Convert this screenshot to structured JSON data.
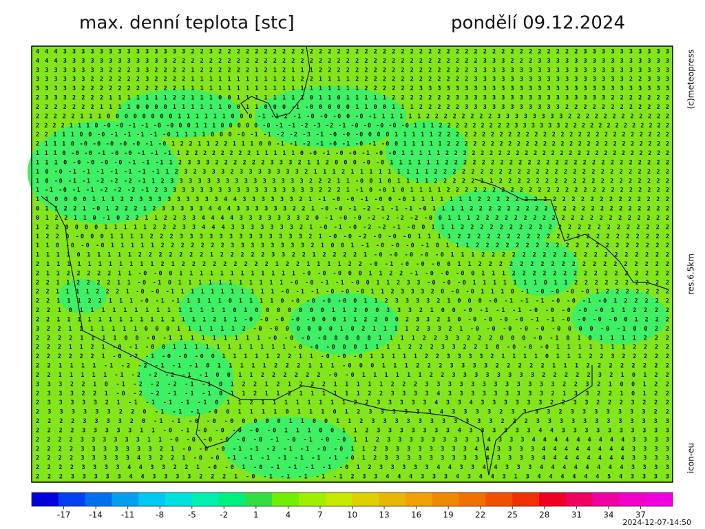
{
  "header": {
    "title": "max. denní teplota [stc]",
    "date": "pondělí 09.12.2024"
  },
  "credits": {
    "copyright": "(c)meteopress",
    "resolution": "res.6.5km",
    "model": "icon-eu"
  },
  "grid": {
    "rows": [
      "4 4 4 3 3 3 3 3 3 3 3 3 3 3 3 3 3 2 2 3 2 2 2 2 2 2 2 2 2 2 2 2 2 2 2 2 2 2 2 2 2 2 2 2 2 2 2 2 2 2 2 2 2 2 2 2 2 2 2 2 3 3 3 3 3 3 3 3 3 3",
      "4 4 4 3 3 3 3 3 3 3 3 3 3 3 3 2 2 2 2 2 2 2 2 2 2 2 2 2 2 2 2 2 2 2 2 2 2 2 2 2 2 2 2 2 2 2 2 2 2 3 3 3 2 2 2 3 3 3 3 3 3 3 3 3 3 3 3 3 3 3",
      "3 3 3 3 3 3 3 3 2 2 2 3 3 2 2 2 2 1 2 2 2 2 2 2 1 2 1 2 1 1 1 2 2 2 2 2 2 2 2 2 2 2 2 2 2 2 2 2 3 3 3 3 3 3 3 3 3 3 3 3 3 3 3 3 3 3 3 3 3 3",
      "3 3 3 3 3 3 2 2 2 2 2 2 3 2 2 2 2 1 1 1 1 1 1 1 1 1 1 2 1 2 2 1 1 1 1 2 2 2 2 2 2 2 2 2 2 2 2 2 3 3 3 3 3 3 3 3 3 3 3 3 3 3 3 3 3 2 2 3 3 3",
      "3 3 3 3 3 2 2 2 2 2 2 2 2 2 2 2 1 1 1 1 1 1 1 1 1 1 1 1 1 1 1 1 1 1 1 1 2 2 2 2 2 2 3 3 3 3 3 3 3 3 3 3 3 3 3 3 3 3 3 3 3 3 3 3 3 3 3 3 3 3",
      "2 3 3 3 2 2 2 2 1 1 1 1 1 1 1 2 2 1 1 1 0 0 1 1 1 1 1 1 1 1 0 1 1 0 1 1 1 1 1 2 2 2 2 2 2 2 3 3 3 3 3 3 3 3 3 3 3 3 3 3 3 3 3 2 2 2 2 2 2 2",
      "2 2 2 2 2 2 2 1 1 1 1 0 0 0 0 1 1 1 1 1 1 0 0 1 1 0 0 0 -1 -0 0 0 0 0 1 1 0 0 1 1 1 2 2 2 2 2 3 3 3 3 3 3 3 3 3 3 3 2 2 2 2 2 2 2 2 2 2 2 2",
      "2 2 2 2 2 1 1 1 0 0 0 0 0 0 0 0 1 1 1 1 1 1 0 0 0 -1 -1 2 -1 -0 -0 -0 0 -0 -1 1 1 1 1 1 2 2 2 2 2 2 2 2 3 3 3 3 3 3 3 3 2 2 2 2 2 2 2 2 2 2 2 2",
      "2 2 2 2 1 1 1 0 -0 -0 -1 -1 -0 -0 0 0 1 1 1 0 0 0 0 0 -0 -1 -1 -2 -3 -2 -1 -0 -0 -0 -0 -0 1 1 1 2 2 2 2 2 2 2 2 2 3 3 3 3 3 3 2 2 2 2 2 2 2 2 2 2 2 2 2",
      "2 2 1 1 1 0 0 -0 -1 -1 -1 -1 -0 1 1 1 1 0 0 0 -0 -1 -1 -2 -2 -3 -1 -0 -0 -0 0 0 0 1 1 1 1 1 2 2 2 2 2 2 2 2 2 2 2 2 2 2 2 2 2 2 2 2 2 2 2 2 2 2 2",
      "2 1 1 1 0 -0 -0 -0 -0 -0 -1 -0 1 2 2 1 1 2 2 1 1 1 0 0 -1 -1 -2 -1 -0 -1 -0 -1 -0 0 1 1 1 1 1 2 2 2 2 2 2 2 2 2 2 2 2 2 2 2 2 2 2 2 2 2 2 2 2 2 2",
      "1 1 1 0 -0 -0 -1 -0 -0 -1 -1 -1 1 2 2 2 2 2 2 2 2 1 1 1 1 1 0 -0 -1 -0 -0 -1 -0 -0 1 1 1 1 1 2 2 2 2 2 2 2 2 2 2 2 2 2 2 2 2 2 2 2 2 2 2 2 2 2 2",
      "1 1 1 0 -0 -0 -0 -0 -1 -1 -1 1 2 3 3 3 2 2 2 2 2 2 3 3 3 2 1 1 2 0 0 0 -0 -0 1 1 1 1 1 1 2 2 2 2 2 2 2 2 2 2 2 2 2 2 2 2 2 2 2 2 2 2 2 2 2",
      "1 0 -0 -1 -1 -1 -1 -1 -1 -1 1 2 3 2 3 3 3 2 3 3 3 3 3 3 3 2 1 1 1 2 1 1 1 1 1 1 1 1 1 2 2 2 2 2 2 2 2 2 2 2 2 2 2 2 2 2 2 2 2 2 2 2 2 2 2",
      "1 0 -0 -1 -1 -2 -2 -2 -1 1 2 3 3 3 3 3 3 3 3 3 3 3 3 3 3 3 2 2 2 1 1 -0 0 1 0 1 1 1 1 2 2 2 2 2 1 1 2 2 2 2 2 2 2 2 2 2 2 2 2 2 2 2 2 2 2",
      "1 -1 -0 -1 -1 -2 -2 -2 -1 2 3 3 3 3 3 3 3 3 3 3 3 3 3 3 3 3 3 2 2 2 1 -1 0 -0 1 0 1 1 1 1 2 2 2 2 2 2 2 2 2 2 2 2 2 2 2 2 2 2 2 2 2 2 2 2 2",
      "1 1 0 0 0 0 1 1 1 2 2 3 3 3 3 3 3 3 3 3 4 4 3 3 3 3 3 3 2 1 -1 -0 -0 -1 -0 0 -0 1 1 1 1 1 1 1 2 2 2 2 2 2 2 2 2 2 2 2 2 2 2 2 2 2 2 2 2",
      "0 1 1 2 2 1 -0 1 2 2 2 1 2 3 3 3 3 3 4 4 4 3 3 3 3 3 3 2 2 1 -0 -0 -1 -2 -1 -1 -1 -0 1 1 1 1 2 2 2 2 2 2 2 2 2 2 2 2 2 2 2 2 2 2 2 2 2 2",
      "0 1 2 2 1 1 0 -1 0 2 2 1 1 2 2 3 3 4 4 4 4 3 3 3 3 3 3 3 2 0 -1 -0 -0 -2 -2 -2 -2 -0 0 1 1 1 2 2 2 2 2 2 2 2 2 2 2 2 2 2 2 2 2 2 2 2 2",
      "1 2 2 0 0 0 0 1 1 1 1 1 2 2 2 3 3 4 4 4 3 3 3 3 3 3 3 2 1 -0 -1 -0 -2 -2 -1 -0 0 1 1 1 2 2 2 2 2 2 2 2 2 2 2 2 2 2 2 2 2 2 2 2 2 2",
      "1 2 2 0 -0 0 0 1 1 1 1 2 2 2 3 3 3 3 3 3 3 3 3 3 3 3 3 2 1 -0 -0 -2 -0 -0 -0 1 1 1 1 2 2 2 2 2 2 2 2 2 2 2 2 2 2 2 2 2 2 2 2 2 2",
      "1 1 0 -0 -0 -0 1 1 1 1 1 2 2 2 2 2 2 2 3 3 3 3 3 3 3 3 2 1 0 0 1 -1 -0 -0 -0 -1 0 1 1 1 2 2 2 2 2 2 2 2 2 2 2 2 2 2 2 2 2 2 2 2",
      "1 1 1 1 0 1 1 1 1 1 2 2 2 2 2 2 2 1 2 2 2 2 2 3 3 2 2 1 2 2 2 2 1 -0 -0 -0 -0 -0 1 1 1 2 2 2 2 2 2 2 2 2 2 2 2 2 2 2 2 2 2 2",
      "2 1 1 1 1 1 1 1 1 1 1 1 2 1 2 2 2 2 2 2 2 2 2 1 2 2 1 1 1 1 2 2 -0 -1 -0 -0 -0 0 1 1 2 2 2 2 2 2 2 2 2 2 2 2 2 2 2 2 2 2 2",
      "2 1 1 2 2 2 2 2 1 1 -0 -0 0 1 1 1 1 1 1 1 1 1 1 1 1 -0 -0 -0 0 0 1 1 2 2 -1 -0 -0 -0 0 1 1 1 2 2 2 2 2 2 2 2 2 2 2 2 2 2 2 2",
      "2 2 1 1 2 2 2 2 1 1 -0 -1 0 1 1 1 1 1 1 1 1 1 1 1 -0 -0 -1 -1 -0 0 1 1 2 3 3 -0 -0 -0 1 1 1 1 1 1 1 0 1 1 2 2 2 2 2 2 2 2 2 2",
      "2 2 1 1 1 1 2 2 2 1 -0 -0 -1 1 1 1 1 1 1 1 1 1 1 -0 -1 -1 -0 -0 -0 1 1 2 3 3 3 2 0 -0 -0 1 1 1 0 -1 -0 -0 -0 -0 1 2 2 2 2 2 2 2",
      "2 2 1 1 1 2 2 1 1 1 -0 -1 -1 1 1 1 1 0 1 1 1 1 0 -0 -0 -0 -0 0 1 1 2 3 3 3 3 2 1 0 0 0 -0 -1 -1 -1 -0 -0 -1 -0 1 2 2 2 2 2",
      "2 2 1 0 1 1 1 1 1 1 1 1 1 1 1 1 1 1 0 1 0 0 0 0 0 0 0 1 1 2 0 0 3 3 3 2 1 0 0 -0 -1 -1 -1 -0 -0 -0 -0 -0 1 1 2 2 2 2",
      "2 2 1 1 1 1 1 1 1 1 1 1 1 1 1 1 1 2 1 1 -0 -0 -0 -0 -0 0 0 1 1 2 2 0 0 2 3 3 2 1 0 -0 -0 -0 -0 -1 -1 -0 -0 -0 -0 0 1 2 2 2",
      "3 2 2 1 1 1 1 1 1 1 0 0 0 1 1 1 1 1 1 2 -0 -0 0 0 0 0 0 1 0 2 1 1 1 1 2 3 3 2 1 -0 -0 -0 -0 -0 -0 0 0 0 -0 -1 0 0 2 2",
      "2 2 2 2 1 1 1 1 0 0 -0 -1 1 1 1 1 1 1 1 1 -0 -0 -0 -0 0 0 0 0 1 1 1 1 2 2 3 3 2 2 2 0 0 0 -0 -1 0 1 0 1 1 1 1 2 2 2",
      "2 2 2 1 1 2 1 -0 -1 -0 0 1 1 1 1 1 1 1 1 1 1 1 -0 -0 -0 0 0 1 1 1 1 2 2 2 3 3 2 2 1 0 -0 -0 -0 1 1 1 1 1 1 1 2 2 2 2",
      "2 2 2 2 2 2 1 -0 -2 -1 -0 -0 -0 0 1 1 1 1 1 2 2 1 1 -0 -0 -0 1 1 1 1 1 2 2 3 3 3 3 2 1 1 1 1 0 1 1 1 2 2 3 2 2 2 2 2",
      "2 2 1 1 1 1 -1 -2 -2 -1 -1 -1 0 1 1 1 1 1 2 2 2 1 1 1 -0 0 0 1 1 1 2 2 2 3 3 3 3 2 2 2 2 2 1 1 1 2 2 2 2 2 2 2 2",
      "2 2 1 1 1 1 1 -1 -2 -2 -2 -1 -1 0 0 1 1 2 2 2 2 2 2 -0 -0 1 1 1 1 1 1 2 2 3 3 3 3 3 3 3 3 2 2 2 2 2 3 2 1 0 1 2 2",
      "3 3 3 2 2 1 0 -1 -2 -2 -2 -1 -1 0 1 2 2 1 2 1 2 2 2 1 1 1 1 1 2 2 2 3 3 3 3 3 3 3 3 3 3 3 3 2 2 3 2 1 0 0 1 2 2",
      "2 3 3 3 2 2 1 -0 -2 -2 -1 -1 -1 0 1 1 2 1 1 2 1 1 1 1 1 1 2 2 3 3 3 3 4 3 3 3 3 3 3 3 3 3 2 1 3 3 2 2 1 0 1 2 2",
      "2 3 3 3 3 3 2 1 -1 -1 -1 -1 -1 0 1 1 2 1 1 1 1 1 1 1 1 2 2 3 3 3 3 3 4 3 3 4 3 3 3 3 3 3 2 2 3 3 2 2 2 3 2 2 2",
      "2 3 3 3 3 3 3 2 2 0 -1 -1 -1 -0 0 1 1 1 1 0 1 1 1 0 1 2 3 3 3 3 3 3 4 3 3 3 3 2 3 3 3 3 2 3 3 3 3 3 3 3 2 2",
      "2 2 2 2 3 3 3 3 2 0 -1 -1 -0 -0 -0 0 0 0 0 1 1 0 0 1 1 2 3 3 3 3 3 3 3 3 3 3 3 2 2 2 3 3 3 3 3 3 3 3 3 3 3 3",
      "2 2 2 2 3 3 3 3 3 1 1 -0 -1 -0 -0 -0 -0 -0 1 1 1 0 0 1 1 2 3 3 3 3 3 3 3 4 3 3 3 3 3 3 4 4 3 3 3 3 3 3 3 3 3 3",
      "2 2 2 2 3 3 3 3 3 3 1 1 -0 -0 -0 -0 -0 -0 -1 -0 -1 -0 -0 1 1 2 3 3 3 3 3 3 3 3 3 4 3 3 3 4 4 4 4 4 4 4 4 4 3 3 3 3",
      "2 2 2 2 3 3 3 3 3 3 3 2 1 -0 -0 -0 -1 -1 -2 -1 -1 -0 -0 1 1 2 3 3 3 3 3 3 3 3 4 4 3 3 3 3 4 4 4 4 4 4 4 4 3 3 3 3",
      "2 2 2 2 3 3 3 3 3 4 3 2 2 1 -0 -0 -1 -1 -1 -1 -1 -1 -1 -0 1 2 3 3 3 3 3 3 3 3 3 4 3 3 3 3 4 4 4 4 4 4 4 4 3 3 3 3",
      "2 2 2 2 3 3 3 3 4 4 3 3 2 2 1 -0 -0 1 -0 -1 -1 -1 -1 -0 1 2 3 3 3 3 3 4 4 3 3 4 4 3 3 3 4 4 4 4 4 4 4 4 3 3 3 3",
      "2 2 2 3 3 3 3 3 4 4 3 3 3 3 2 2 2 1 -0 -1 -1 -1 -1 -1 2 3 3 4 4 4 3 3 3 4 3 4 4 3 1 3 4 4 4 4 4 4 5 4 3 3 3 3"
    ]
  },
  "colorbar": {
    "lim": [
      -20,
      40
    ],
    "ticks": [
      -17,
      -14,
      -11,
      -8,
      -5,
      -2,
      1,
      4,
      7,
      10,
      13,
      16,
      19,
      22,
      25,
      28,
      31,
      34,
      37
    ],
    "colors": [
      "#0000dd",
      "#0040f0",
      "#0070f0",
      "#00a0f0",
      "#00c8f0",
      "#00e0e0",
      "#00f0b0",
      "#00f080",
      "#30e040",
      "#70f000",
      "#9ef000",
      "#c8e800",
      "#e0d000",
      "#e8b800",
      "#f0a000",
      "#f08800",
      "#f07000",
      "#f05000",
      "#f03000",
      "#f00020",
      "#f00060",
      "#f000a0",
      "#f000c8",
      "#f000e0"
    ]
  },
  "timestamp": "2024-12-07-14:50"
}
